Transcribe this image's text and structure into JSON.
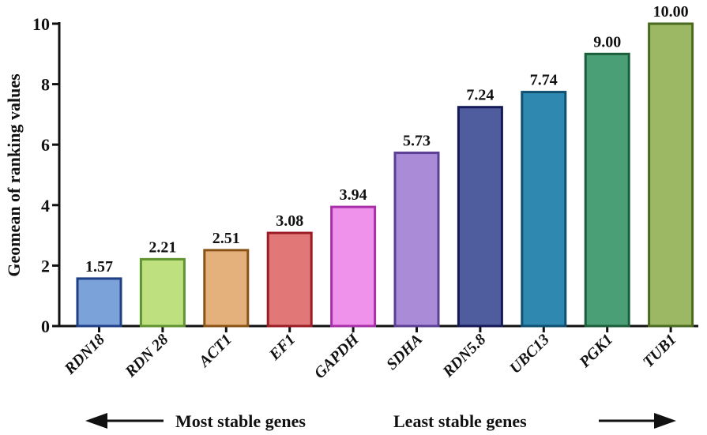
{
  "chart_data": {
    "type": "bar",
    "title": "",
    "xlabel": "",
    "ylabel": "Geomean of ranking values",
    "ylim": [
      0,
      10
    ],
    "yticks": [
      "0",
      "2",
      "4",
      "6",
      "8",
      "10"
    ],
    "categories": [
      "RDN18",
      "RDN 28",
      "ACT1",
      "EF1",
      "GAPDH",
      "SDHA",
      "RDN5.8",
      "UBC13",
      "PGK1",
      "TUB1"
    ],
    "values": [
      1.57,
      2.21,
      2.51,
      3.08,
      3.94,
      5.73,
      7.24,
      7.74,
      9.0,
      10.0
    ],
    "value_labels": [
      "1.57",
      "2.21",
      "2.51",
      "3.08",
      "3.94",
      "5.73",
      "7.24",
      "7.74",
      "9.00",
      "10.00"
    ],
    "fill_colors": [
      "#7ba3d9",
      "#bfe07f",
      "#e4b07c",
      "#e27777",
      "#ef92eb",
      "#a98bd7",
      "#4f5d9f",
      "#2f88b0",
      "#4a9f77",
      "#9db865"
    ],
    "stroke_colors": [
      "#1f3f87",
      "#5f9430",
      "#8a5316",
      "#9a1c25",
      "#a72fa8",
      "#5c3f94",
      "#141a58",
      "#0f4f72",
      "#1a5e3a",
      "#4a6a20"
    ],
    "grid": false,
    "annotations": {
      "left_text": "Most stable genes",
      "right_text": "Least stable genes"
    }
  }
}
